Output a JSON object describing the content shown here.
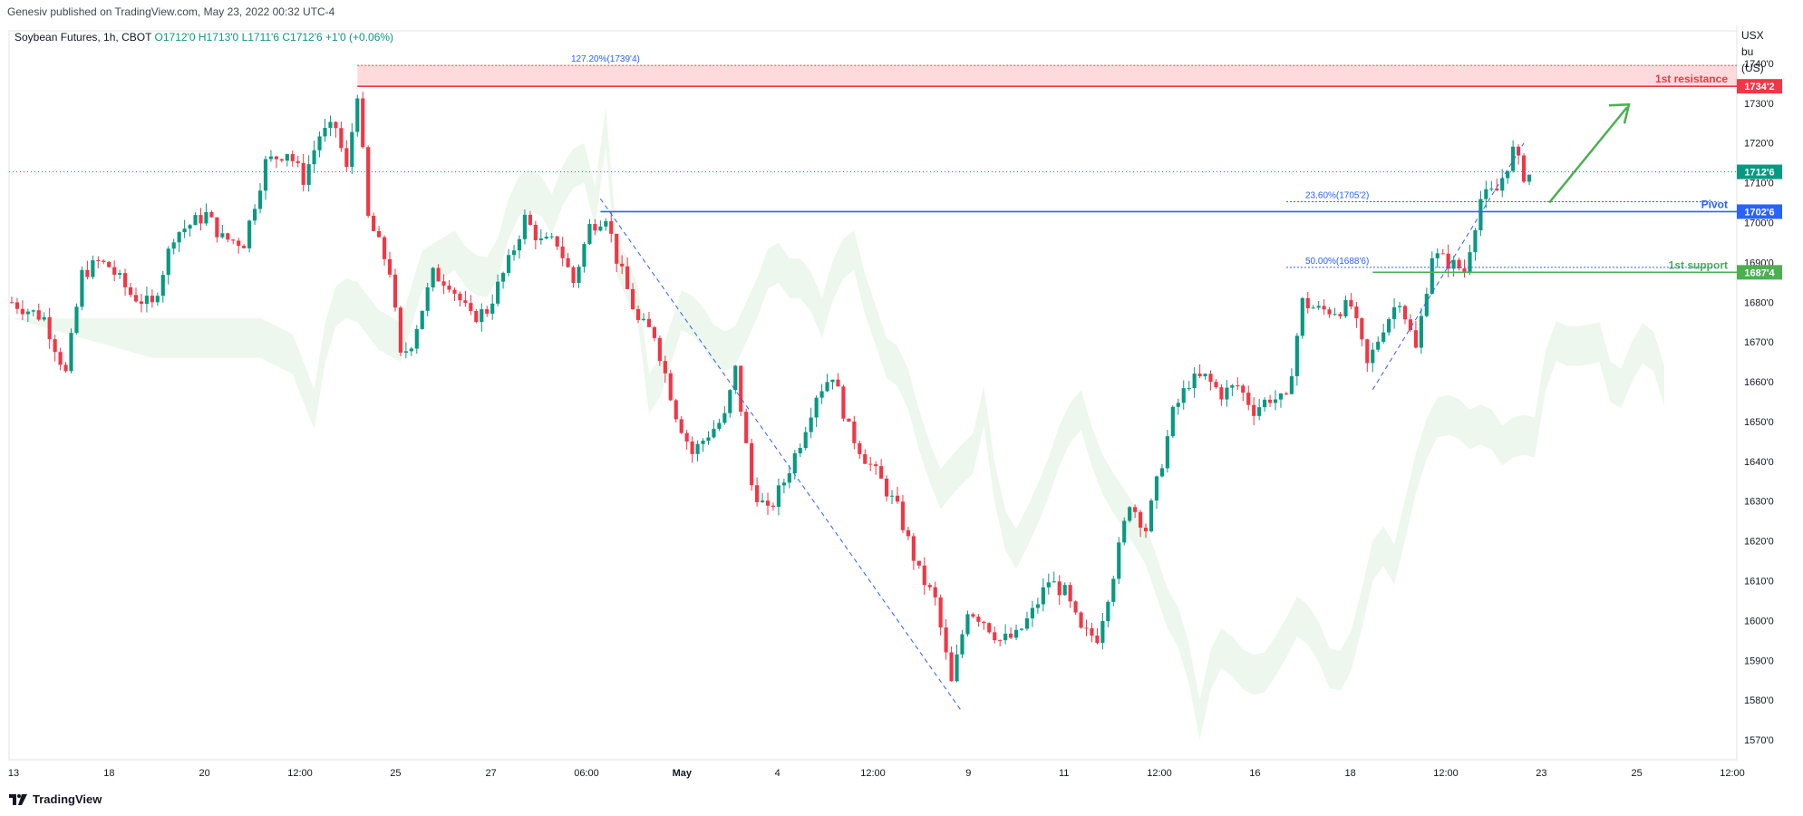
{
  "header": {
    "published": "Genesiv published on TradingView.com, May 23, 2022 00:32 UTC-4",
    "symbol": "Soybean Futures, 1h, CBOT",
    "open": "O1712'0",
    "high": "H1713'0",
    "low": "L1711'6",
    "close": "C1712'6",
    "change": "+1'0 (+0.06%)"
  },
  "axis_unit": {
    "line1": "USX",
    "line2": "bu (US)"
  },
  "footer": {
    "brand": "TradingView",
    "logo": "tradingview-logo-icon"
  },
  "colors": {
    "up": "#089981",
    "down": "#f23645",
    "pivot": "#2962ff",
    "resistance": "#f23645",
    "support": "#4caf50",
    "fib": "#2962ff"
  },
  "chart_data": {
    "type": "candlestick",
    "title": "Soybean Futures, 1h, CBOT",
    "ylim": [
      1565,
      1745
    ],
    "y_ticks": [
      1570,
      1580,
      1590,
      1600,
      1610,
      1620,
      1630,
      1640,
      1650,
      1660,
      1670,
      1680,
      1690,
      1700,
      1710,
      1720,
      1730,
      1740
    ],
    "y_tick_labels": [
      "1570'0",
      "1580'0",
      "1590'0",
      "1600'0",
      "1610'0",
      "1620'0",
      "1630'0",
      "1640'0",
      "1650'0",
      "1660'0",
      "1670'0",
      "1680'0",
      "1690'0",
      "1700'0",
      "1710'0",
      "1720'0",
      "1730'0",
      "1740'0"
    ],
    "x_tick_labels": [
      "13",
      "18",
      "20",
      "12:00",
      "25",
      "27",
      "06:00",
      "May",
      "4",
      "12:00",
      "9",
      "11",
      "12:00",
      "16",
      "18",
      "12:00",
      "23",
      "25",
      "12:00"
    ],
    "price_path": [
      [
        0,
        1680
      ],
      [
        6,
        1676
      ],
      [
        10,
        1662
      ],
      [
        13,
        1687
      ],
      [
        16,
        1690
      ],
      [
        18,
        1689
      ],
      [
        22,
        1682
      ],
      [
        26,
        1679
      ],
      [
        30,
        1697
      ],
      [
        36,
        1702
      ],
      [
        39,
        1696
      ],
      [
        43,
        1695
      ],
      [
        47,
        1715
      ],
      [
        51,
        1718
      ],
      [
        54,
        1711
      ],
      [
        57,
        1722
      ],
      [
        60,
        1724
      ],
      [
        62,
        1713
      ],
      [
        64,
        1733
      ],
      [
        66,
        1701
      ],
      [
        70,
        1688
      ],
      [
        72,
        1666
      ],
      [
        74,
        1670
      ],
      [
        78,
        1687
      ],
      [
        81,
        1685
      ],
      [
        85,
        1676
      ],
      [
        88,
        1678
      ],
      [
        92,
        1690
      ],
      [
        95,
        1701
      ],
      [
        98,
        1695
      ],
      [
        101,
        1695
      ],
      [
        104,
        1685
      ],
      [
        107,
        1699
      ],
      [
        110,
        1702
      ],
      [
        112,
        1691
      ],
      [
        116,
        1675
      ],
      [
        119,
        1672
      ],
      [
        123,
        1652
      ],
      [
        126,
        1642
      ],
      [
        129,
        1647
      ],
      [
        132,
        1651
      ],
      [
        134,
        1663
      ],
      [
        137,
        1634
      ],
      [
        140,
        1627
      ],
      [
        143,
        1635
      ],
      [
        146,
        1645
      ],
      [
        149,
        1657
      ],
      [
        152,
        1662
      ],
      [
        155,
        1648
      ],
      [
        158,
        1641
      ],
      [
        161,
        1635
      ],
      [
        164,
        1628
      ],
      [
        168,
        1612
      ],
      [
        171,
        1605
      ],
      [
        174,
        1584
      ],
      [
        177,
        1603
      ],
      [
        180,
        1600
      ],
      [
        183,
        1595
      ],
      [
        186,
        1596
      ],
      [
        189,
        1602
      ],
      [
        192,
        1610
      ],
      [
        195,
        1607
      ],
      [
        198,
        1597
      ],
      [
        201,
        1596
      ],
      [
        204,
        1612
      ],
      [
        207,
        1630
      ],
      [
        210,
        1623
      ],
      [
        213,
        1640
      ],
      [
        215,
        1652
      ],
      [
        218,
        1660
      ],
      [
        221,
        1661
      ],
      [
        224,
        1657
      ],
      [
        227,
        1659
      ],
      [
        230,
        1653
      ],
      [
        233,
        1656
      ],
      [
        236,
        1655
      ],
      [
        239,
        1680
      ],
      [
        242,
        1678
      ],
      [
        245,
        1678
      ],
      [
        248,
        1679
      ],
      [
        251,
        1664
      ],
      [
        254,
        1674
      ],
      [
        257,
        1681
      ],
      [
        260,
        1668
      ],
      [
        263,
        1692
      ],
      [
        266,
        1690
      ],
      [
        269,
        1688
      ],
      [
        272,
        1706
      ],
      [
        275,
        1708
      ],
      [
        278,
        1718
      ],
      [
        280,
        1712
      ]
    ],
    "n_bars": 282,
    "levels": [
      {
        "name": "1st resistance",
        "value": 1734.25,
        "label": "1734'2",
        "color": "#f23645"
      },
      {
        "name": "Pivot",
        "value": 1702.75,
        "label": "1702'6",
        "color": "#2962ff"
      },
      {
        "name": "1st support",
        "value": 1687.5,
        "label": "1687'4",
        "color": "#4caf50"
      },
      {
        "name": "last",
        "value": 1712.75,
        "label": "1712'6",
        "color": "#089981"
      }
    ],
    "fib_labels": [
      {
        "text": "127.20%(1739'4)",
        "value": 1739.5
      },
      {
        "text": "23.60%(1705'2)",
        "value": 1705.25
      },
      {
        "text": "50.00%(1688'6)",
        "value": 1688.75
      }
    ],
    "annotations": [
      "1st resistance",
      "Pivot",
      "1st support"
    ]
  }
}
